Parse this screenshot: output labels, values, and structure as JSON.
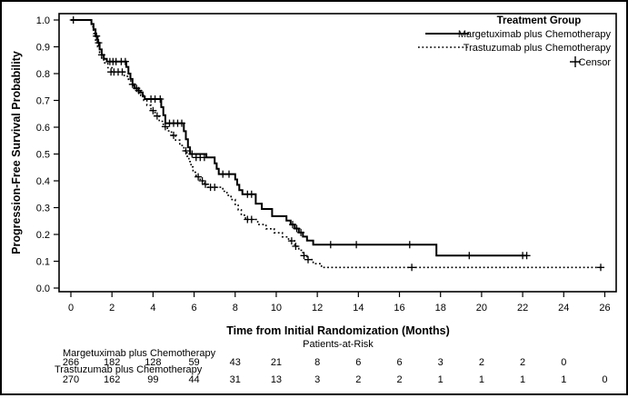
{
  "figure": {
    "background": "#ffffff",
    "line_color": "#000000"
  },
  "chart_data": {
    "type": "line",
    "subtype": "kaplan-meier-step",
    "title": "",
    "xlabel": "Time from Initial Randomization (Months)",
    "ylabel": "Progression-Free Survival Probability",
    "xlim": [
      0,
      26
    ],
    "ylim": [
      0.0,
      1.0
    ],
    "grid": false,
    "x_ticks": [
      0,
      2,
      4,
      6,
      8,
      10,
      12,
      14,
      16,
      18,
      20,
      22,
      24,
      26
    ],
    "y_tick_labels": [
      "0.0",
      "0.1",
      "0.2",
      "0.3",
      "0.4",
      "0.5",
      "0.6",
      "0.7",
      "0.8",
      "0.9",
      "1.0"
    ],
    "legend": {
      "title": "Treatment Group",
      "position": "top-right-inside",
      "censor_label": "Censor",
      "censor_symbol": "+"
    },
    "series": [
      {
        "name": "Margetuximab plus Chemotherapy",
        "line_style": "solid",
        "color": "#000000",
        "steps": [
          [
            0,
            1.0
          ],
          [
            1.0,
            0.985
          ],
          [
            1.1,
            0.965
          ],
          [
            1.2,
            0.94
          ],
          [
            1.3,
            0.915
          ],
          [
            1.4,
            0.89
          ],
          [
            1.5,
            0.87
          ],
          [
            1.6,
            0.855
          ],
          [
            1.75,
            0.845
          ],
          [
            2.7,
            0.825
          ],
          [
            2.8,
            0.8
          ],
          [
            2.9,
            0.78
          ],
          [
            3.0,
            0.76
          ],
          [
            3.1,
            0.745
          ],
          [
            3.3,
            0.73
          ],
          [
            3.5,
            0.715
          ],
          [
            3.6,
            0.705
          ],
          [
            4.4,
            0.675
          ],
          [
            4.5,
            0.645
          ],
          [
            4.6,
            0.615
          ],
          [
            5.5,
            0.585
          ],
          [
            5.6,
            0.555
          ],
          [
            5.7,
            0.525
          ],
          [
            5.8,
            0.5
          ],
          [
            6.6,
            0.487
          ],
          [
            7.0,
            0.465
          ],
          [
            7.1,
            0.445
          ],
          [
            7.2,
            0.425
          ],
          [
            8.0,
            0.405
          ],
          [
            8.1,
            0.385
          ],
          [
            8.2,
            0.365
          ],
          [
            8.35,
            0.35
          ],
          [
            9.0,
            0.315
          ],
          [
            9.3,
            0.295
          ],
          [
            9.8,
            0.268
          ],
          [
            10.5,
            0.252
          ],
          [
            10.7,
            0.237
          ],
          [
            10.9,
            0.222
          ],
          [
            11.1,
            0.207
          ],
          [
            11.3,
            0.192
          ],
          [
            11.5,
            0.177
          ],
          [
            11.8,
            0.162
          ],
          [
            17.8,
            0.121
          ],
          [
            22.2,
            0.121
          ]
        ],
        "censors": [
          [
            0.12,
            1.0
          ],
          [
            1.25,
            0.94
          ],
          [
            1.35,
            0.915
          ],
          [
            1.5,
            0.87
          ],
          [
            1.9,
            0.845
          ],
          [
            2.05,
            0.845
          ],
          [
            2.2,
            0.845
          ],
          [
            2.45,
            0.845
          ],
          [
            2.65,
            0.845
          ],
          [
            3.0,
            0.76
          ],
          [
            3.2,
            0.745
          ],
          [
            3.9,
            0.705
          ],
          [
            4.1,
            0.705
          ],
          [
            4.35,
            0.705
          ],
          [
            4.8,
            0.615
          ],
          [
            5.0,
            0.615
          ],
          [
            5.2,
            0.615
          ],
          [
            5.4,
            0.615
          ],
          [
            5.9,
            0.5
          ],
          [
            6.1,
            0.487
          ],
          [
            6.3,
            0.487
          ],
          [
            6.5,
            0.487
          ],
          [
            7.4,
            0.425
          ],
          [
            7.7,
            0.425
          ],
          [
            8.6,
            0.35
          ],
          [
            8.8,
            0.35
          ],
          [
            10.8,
            0.237
          ],
          [
            11.0,
            0.222
          ],
          [
            11.2,
            0.207
          ],
          [
            12.65,
            0.162
          ],
          [
            13.9,
            0.162
          ],
          [
            16.5,
            0.162
          ],
          [
            19.4,
            0.121
          ],
          [
            22.0,
            0.121
          ],
          [
            22.2,
            0.121
          ]
        ]
      },
      {
        "name": "Trastuzumab plus Chemotherapy",
        "line_style": "dotted",
        "color": "#000000",
        "steps": [
          [
            0,
            1.0
          ],
          [
            1.0,
            0.975
          ],
          [
            1.1,
            0.95
          ],
          [
            1.2,
            0.925
          ],
          [
            1.3,
            0.9
          ],
          [
            1.4,
            0.878
          ],
          [
            1.5,
            0.858
          ],
          [
            1.6,
            0.84
          ],
          [
            1.8,
            0.822
          ],
          [
            2.0,
            0.806
          ],
          [
            2.6,
            0.79
          ],
          [
            2.8,
            0.773
          ],
          [
            3.0,
            0.755
          ],
          [
            3.2,
            0.737
          ],
          [
            3.4,
            0.718
          ],
          [
            3.55,
            0.7
          ],
          [
            3.7,
            0.682
          ],
          [
            3.9,
            0.662
          ],
          [
            4.1,
            0.642
          ],
          [
            4.3,
            0.622
          ],
          [
            4.5,
            0.602
          ],
          [
            4.7,
            0.586
          ],
          [
            4.9,
            0.57
          ],
          [
            5.1,
            0.552
          ],
          [
            5.3,
            0.532
          ],
          [
            5.5,
            0.512
          ],
          [
            5.65,
            0.492
          ],
          [
            5.75,
            0.472
          ],
          [
            5.85,
            0.452
          ],
          [
            5.95,
            0.432
          ],
          [
            6.1,
            0.415
          ],
          [
            6.3,
            0.4
          ],
          [
            6.5,
            0.387
          ],
          [
            6.65,
            0.376
          ],
          [
            7.4,
            0.361
          ],
          [
            7.6,
            0.346
          ],
          [
            7.8,
            0.33
          ],
          [
            8.0,
            0.312
          ],
          [
            8.15,
            0.292
          ],
          [
            8.3,
            0.272
          ],
          [
            8.5,
            0.256
          ],
          [
            9.1,
            0.237
          ],
          [
            9.5,
            0.221
          ],
          [
            9.9,
            0.206
          ],
          [
            10.3,
            0.191
          ],
          [
            10.6,
            0.176
          ],
          [
            10.9,
            0.156
          ],
          [
            11.1,
            0.141
          ],
          [
            11.3,
            0.121
          ],
          [
            11.5,
            0.106
          ],
          [
            11.8,
            0.091
          ],
          [
            12.2,
            0.077
          ],
          [
            25.8,
            0.077
          ]
        ],
        "censors": [
          [
            1.95,
            0.806
          ],
          [
            2.1,
            0.806
          ],
          [
            2.3,
            0.806
          ],
          [
            2.5,
            0.806
          ],
          [
            3.3,
            0.737
          ],
          [
            4.0,
            0.662
          ],
          [
            4.2,
            0.642
          ],
          [
            4.6,
            0.602
          ],
          [
            5.0,
            0.57
          ],
          [
            5.6,
            0.512
          ],
          [
            6.2,
            0.415
          ],
          [
            6.4,
            0.4
          ],
          [
            6.55,
            0.387
          ],
          [
            6.8,
            0.376
          ],
          [
            7.0,
            0.376
          ],
          [
            8.6,
            0.256
          ],
          [
            8.8,
            0.256
          ],
          [
            10.75,
            0.176
          ],
          [
            10.95,
            0.156
          ],
          [
            11.35,
            0.121
          ],
          [
            11.55,
            0.106
          ],
          [
            16.6,
            0.077
          ],
          [
            25.8,
            0.077
          ]
        ]
      }
    ],
    "risk_table": {
      "title": "Patients-at-Risk",
      "rows": [
        {
          "label": "Margetuximab plus Chemotherapy",
          "times": [
            0,
            2,
            4,
            6,
            8,
            10,
            12,
            14,
            16,
            18,
            20,
            22,
            24
          ],
          "counts": [
            266,
            182,
            128,
            59,
            43,
            21,
            8,
            6,
            6,
            3,
            2,
            2,
            0
          ]
        },
        {
          "label": "Trastuzumab plus Chemotherapy",
          "times": [
            0,
            2,
            4,
            6,
            8,
            10,
            12,
            14,
            16,
            18,
            20,
            22,
            24,
            26
          ],
          "counts": [
            270,
            162,
            99,
            44,
            31,
            13,
            3,
            2,
            2,
            1,
            1,
            1,
            1,
            0
          ]
        }
      ]
    }
  }
}
